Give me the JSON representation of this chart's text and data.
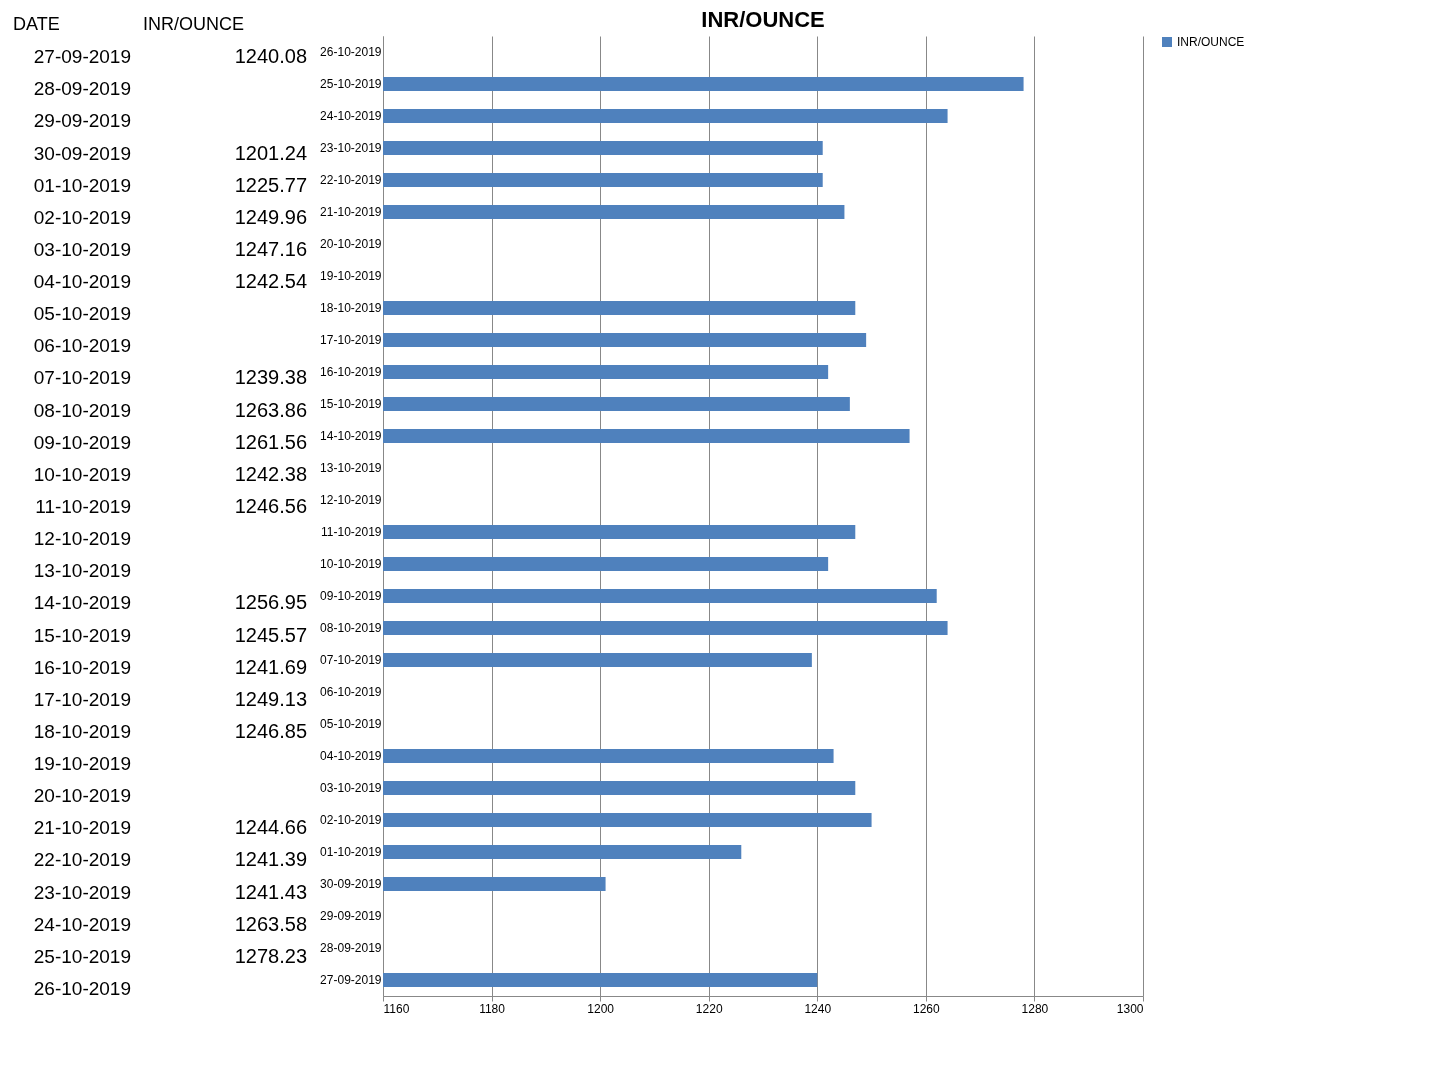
{
  "chart_data": [
    {
      "type": "other",
      "xlabel": "DATE",
      "ylabel": "INR/OUNCE",
      "categories": [
        "27-09-2019",
        "28-09-2019",
        "29-09-2019",
        "30-09-2019",
        "01-10-2019",
        "02-10-2019",
        "03-10-2019",
        "04-10-2019",
        "05-10-2019",
        "06-10-2019",
        "07-10-2019",
        "08-10-2019",
        "09-10-2019",
        "10-10-2019",
        "11-10-2019",
        "12-10-2019",
        "13-10-2019",
        "14-10-2019",
        "15-10-2019",
        "16-10-2019",
        "17-10-2019",
        "18-10-2019",
        "19-10-2019",
        "20-10-2019",
        "21-10-2019",
        "22-10-2019",
        "23-10-2019",
        "24-10-2019",
        "25-10-2019",
        "26-10-2019"
      ],
      "value_labels": [
        "1240.08",
        null,
        null,
        "1201.24",
        "1225.77",
        "1249.96",
        "1247.16",
        "1242.54",
        null,
        null,
        "1239.38",
        "1263.86",
        "1261.56",
        "1242.38",
        "1246.56",
        null,
        null,
        "1256.95",
        "1245.57",
        "1241.69",
        "1249.13",
        "1246.85",
        null,
        null,
        "1244.66",
        "1241.39",
        "1241.43",
        "1263.58",
        "1278.23",
        null
      ]
    },
    {
      "type": "bar",
      "title": "INR/OUNCE",
      "orientation": "horizontal",
      "categories": [
        "26-10-2019",
        "25-10-2019",
        "24-10-2019",
        "23-10-2019",
        "22-10-2019",
        "21-10-2019",
        "20-10-2019",
        "19-10-2019",
        "18-10-2019",
        "17-10-2019",
        "16-10-2019",
        "15-10-2019",
        "14-10-2019",
        "13-10-2019",
        "12-10-2019",
        "11-10-2019",
        "10-10-2019",
        "09-10-2019",
        "08-10-2019",
        "07-10-2019",
        "06-10-2019",
        "05-10-2019",
        "04-10-2019",
        "03-10-2019",
        "02-10-2019",
        "01-10-2019",
        "30-09-2019",
        "29-09-2019",
        "28-09-2019",
        "27-09-2019"
      ],
      "series": [
        {
          "name": "INR/OUNCE",
          "color": "#4f81bd",
          "values": [
            null,
            1278,
            1264,
            1241,
            1241,
            1245,
            null,
            null,
            1247,
            1249,
            1242,
            1246,
            1257,
            null,
            null,
            1247,
            1242,
            1262,
            1264,
            1239,
            null,
            null,
            1243,
            1247,
            1250,
            1226,
            1201,
            null,
            null,
            1240
          ]
        }
      ],
      "xlim": [
        1160,
        1300
      ],
      "xticks": [
        1160,
        1180,
        1200,
        1220,
        1240,
        1260,
        1280,
        1300
      ],
      "grid": "x",
      "legend": "right"
    }
  ]
}
